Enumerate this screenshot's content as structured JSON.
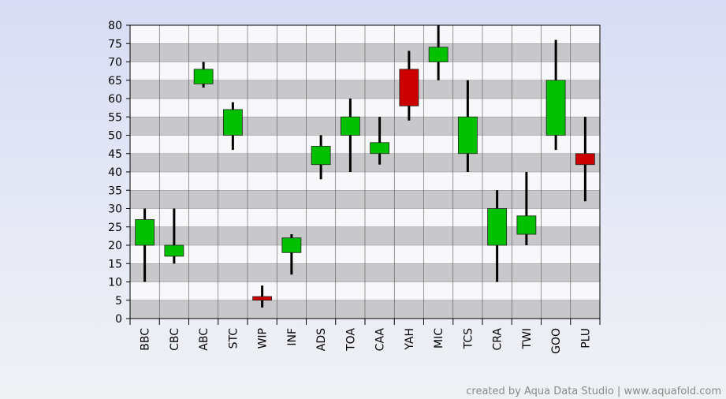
{
  "chart_data": {
    "type": "candlestick",
    "categories": [
      "BBC",
      "CBC",
      "ABC",
      "STC",
      "WIP",
      "INF",
      "ADS",
      "TOA",
      "CAA",
      "YAH",
      "MIC",
      "TCS",
      "CRA",
      "TWI",
      "GOO",
      "PLU"
    ],
    "series": [
      {
        "open": 20,
        "close": 27,
        "low": 10,
        "high": 30
      },
      {
        "open": 17,
        "close": 20,
        "low": 15,
        "high": 30
      },
      {
        "open": 64,
        "close": 68,
        "low": 63,
        "high": 70
      },
      {
        "open": 50,
        "close": 57,
        "low": 46,
        "high": 59
      },
      {
        "open": 6,
        "close": 5,
        "low": 3,
        "high": 9
      },
      {
        "open": 18,
        "close": 22,
        "low": 12,
        "high": 23
      },
      {
        "open": 42,
        "close": 47,
        "low": 38,
        "high": 50
      },
      {
        "open": 50,
        "close": 55,
        "low": 40,
        "high": 60
      },
      {
        "open": 45,
        "close": 48,
        "low": 42,
        "high": 55
      },
      {
        "open": 68,
        "close": 58,
        "low": 54,
        "high": 73
      },
      {
        "open": 70,
        "close": 74,
        "low": 65,
        "high": 80
      },
      {
        "open": 45,
        "close": 55,
        "low": 40,
        "high": 65
      },
      {
        "open": 20,
        "close": 30,
        "low": 10,
        "high": 35
      },
      {
        "open": 23,
        "close": 28,
        "low": 20,
        "high": 40
      },
      {
        "open": 50,
        "close": 65,
        "low": 46,
        "high": 76
      },
      {
        "open": 45,
        "close": 42,
        "low": 32,
        "high": 55
      }
    ],
    "ylim": [
      0,
      80
    ],
    "ytick_step": 5,
    "up_color": "#00c000",
    "down_color": "#cc0000",
    "grid": true
  },
  "footer": "created by Aqua Data Studio | www.aquafold.com"
}
